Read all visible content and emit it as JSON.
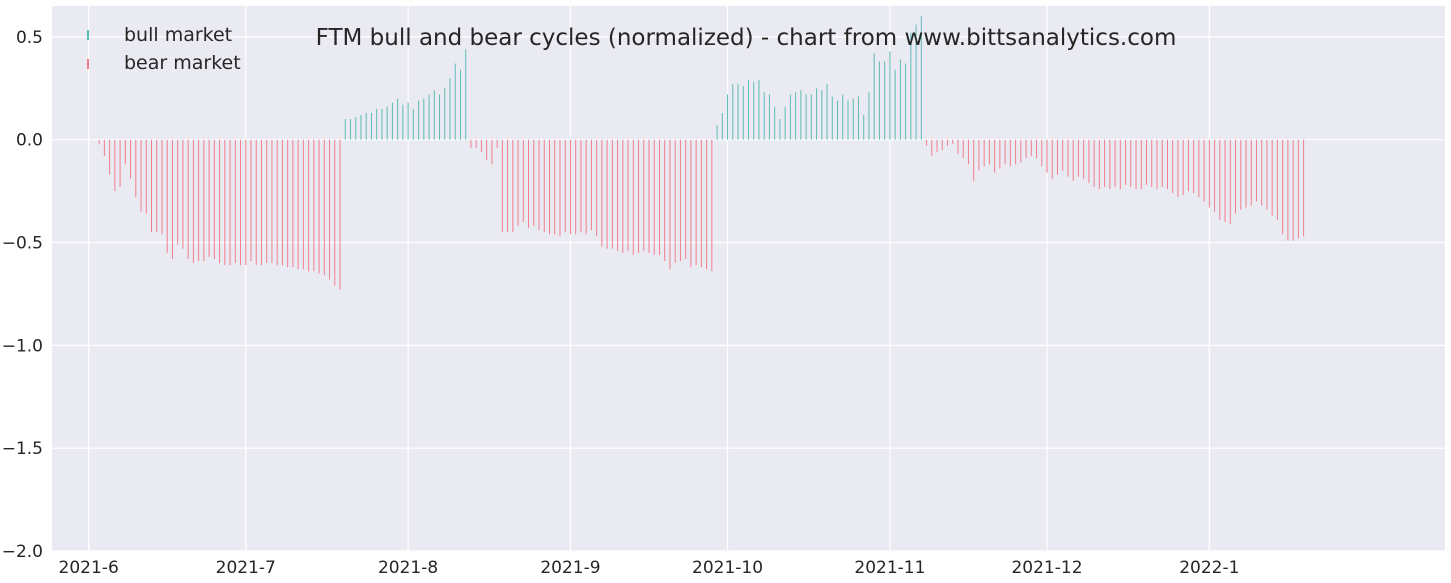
{
  "chart_data": {
    "type": "bar",
    "title": "FTM bull and bear cycles (normalized)  - chart from www.bittsanalytics.com",
    "xlabel": "",
    "ylabel": "",
    "ylim": [
      -2.0,
      0.65
    ],
    "xlim": [
      "2021-05-25",
      "2022-02-15"
    ],
    "grid": true,
    "legend_position": "top-left",
    "colors": {
      "background": "#eaeaf2",
      "grid": "#ffffff",
      "bull": "#5bbcb4",
      "bear": "#f07f8c",
      "text": "#262626"
    },
    "x_ticks": [
      {
        "label": "2021-6",
        "date": "2021-06-01"
      },
      {
        "label": "2021-7",
        "date": "2021-07-01"
      },
      {
        "label": "2021-8",
        "date": "2021-08-01"
      },
      {
        "label": "2021-9",
        "date": "2021-09-01"
      },
      {
        "label": "2021-10",
        "date": "2021-10-01"
      },
      {
        "label": "2021-11",
        "date": "2021-11-01"
      },
      {
        "label": "2021-12",
        "date": "2021-12-01"
      },
      {
        "label": "2022-1",
        "date": "2022-01-01"
      }
    ],
    "y_ticks": [
      {
        "label": "0.5",
        "value": 0.5
      },
      {
        "label": "0.0",
        "value": 0.0
      },
      {
        "label": "−0.5",
        "value": -0.5
      },
      {
        "label": "−1.0",
        "value": -1.0
      },
      {
        "label": "−1.5",
        "value": -1.5
      },
      {
        "label": "−2.0",
        "value": -2.0
      }
    ],
    "series": [
      {
        "name": "bull market",
        "color": "#5bbcb4",
        "points": [
          {
            "x": "2021-07-20",
            "y": 0.1
          },
          {
            "x": "2021-07-21",
            "y": 0.1
          },
          {
            "x": "2021-07-22",
            "y": 0.11
          },
          {
            "x": "2021-07-23",
            "y": 0.12
          },
          {
            "x": "2021-07-24",
            "y": 0.13
          },
          {
            "x": "2021-07-25",
            "y": 0.13
          },
          {
            "x": "2021-07-26",
            "y": 0.15
          },
          {
            "x": "2021-07-27",
            "y": 0.15
          },
          {
            "x": "2021-07-28",
            "y": 0.16
          },
          {
            "x": "2021-07-29",
            "y": 0.18
          },
          {
            "x": "2021-07-30",
            "y": 0.2
          },
          {
            "x": "2021-07-31",
            "y": 0.17
          },
          {
            "x": "2021-08-01",
            "y": 0.18
          },
          {
            "x": "2021-08-02",
            "y": 0.15
          },
          {
            "x": "2021-08-03",
            "y": 0.19
          },
          {
            "x": "2021-08-04",
            "y": 0.2
          },
          {
            "x": "2021-08-05",
            "y": 0.22
          },
          {
            "x": "2021-08-06",
            "y": 0.24
          },
          {
            "x": "2021-08-07",
            "y": 0.22
          },
          {
            "x": "2021-08-08",
            "y": 0.25
          },
          {
            "x": "2021-08-09",
            "y": 0.3
          },
          {
            "x": "2021-08-10",
            "y": 0.37
          },
          {
            "x": "2021-08-11",
            "y": 0.34
          },
          {
            "x": "2021-08-12",
            "y": 0.44
          },
          {
            "x": "2021-09-29",
            "y": 0.07
          },
          {
            "x": "2021-09-30",
            "y": 0.13
          },
          {
            "x": "2021-10-01",
            "y": 0.22
          },
          {
            "x": "2021-10-02",
            "y": 0.27
          },
          {
            "x": "2021-10-03",
            "y": 0.27
          },
          {
            "x": "2021-10-04",
            "y": 0.26
          },
          {
            "x": "2021-10-05",
            "y": 0.29
          },
          {
            "x": "2021-10-06",
            "y": 0.28
          },
          {
            "x": "2021-10-07",
            "y": 0.29
          },
          {
            "x": "2021-10-08",
            "y": 0.23
          },
          {
            "x": "2021-10-09",
            "y": 0.22
          },
          {
            "x": "2021-10-10",
            "y": 0.16
          },
          {
            "x": "2021-10-11",
            "y": 0.1
          },
          {
            "x": "2021-10-12",
            "y": 0.16
          },
          {
            "x": "2021-10-13",
            "y": 0.22
          },
          {
            "x": "2021-10-14",
            "y": 0.23
          },
          {
            "x": "2021-10-15",
            "y": 0.24
          },
          {
            "x": "2021-10-16",
            "y": 0.22
          },
          {
            "x": "2021-10-17",
            "y": 0.22
          },
          {
            "x": "2021-10-18",
            "y": 0.25
          },
          {
            "x": "2021-10-19",
            "y": 0.24
          },
          {
            "x": "2021-10-20",
            "y": 0.27
          },
          {
            "x": "2021-10-21",
            "y": 0.21
          },
          {
            "x": "2021-10-22",
            "y": 0.19
          },
          {
            "x": "2021-10-23",
            "y": 0.22
          },
          {
            "x": "2021-10-24",
            "y": 0.19
          },
          {
            "x": "2021-10-25",
            "y": 0.2
          },
          {
            "x": "2021-10-26",
            "y": 0.21
          },
          {
            "x": "2021-10-27",
            "y": 0.12
          },
          {
            "x": "2021-10-28",
            "y": 0.23
          },
          {
            "x": "2021-10-29",
            "y": 0.42
          },
          {
            "x": "2021-10-30",
            "y": 0.38
          },
          {
            "x": "2021-10-31",
            "y": 0.38
          },
          {
            "x": "2021-11-01",
            "y": 0.43
          },
          {
            "x": "2021-11-02",
            "y": 0.34
          },
          {
            "x": "2021-11-03",
            "y": 0.39
          },
          {
            "x": "2021-11-04",
            "y": 0.37
          },
          {
            "x": "2021-11-05",
            "y": 0.52
          },
          {
            "x": "2021-11-06",
            "y": 0.56
          },
          {
            "x": "2021-11-07",
            "y": 0.6
          }
        ]
      },
      {
        "name": "bear market",
        "color": "#f07f8c",
        "points": [
          {
            "x": "2021-06-03",
            "y": -0.02
          },
          {
            "x": "2021-06-04",
            "y": -0.08
          },
          {
            "x": "2021-06-05",
            "y": -0.17
          },
          {
            "x": "2021-06-06",
            "y": -0.25
          },
          {
            "x": "2021-06-07",
            "y": -0.23
          },
          {
            "x": "2021-06-08",
            "y": -0.12
          },
          {
            "x": "2021-06-09",
            "y": -0.19
          },
          {
            "x": "2021-06-10",
            "y": -0.28
          },
          {
            "x": "2021-06-11",
            "y": -0.35
          },
          {
            "x": "2021-06-12",
            "y": -0.36
          },
          {
            "x": "2021-06-13",
            "y": -0.45
          },
          {
            "x": "2021-06-14",
            "y": -0.45
          },
          {
            "x": "2021-06-15",
            "y": -0.46
          },
          {
            "x": "2021-06-16",
            "y": -0.55
          },
          {
            "x": "2021-06-17",
            "y": -0.58
          },
          {
            "x": "2021-06-18",
            "y": -0.51
          },
          {
            "x": "2021-06-19",
            "y": -0.53
          },
          {
            "x": "2021-06-20",
            "y": -0.58
          },
          {
            "x": "2021-06-21",
            "y": -0.6
          },
          {
            "x": "2021-06-22",
            "y": -0.59
          },
          {
            "x": "2021-06-23",
            "y": -0.59
          },
          {
            "x": "2021-06-24",
            "y": -0.57
          },
          {
            "x": "2021-06-25",
            "y": -0.58
          },
          {
            "x": "2021-06-26",
            "y": -0.6
          },
          {
            "x": "2021-06-27",
            "y": -0.61
          },
          {
            "x": "2021-06-28",
            "y": -0.61
          },
          {
            "x": "2021-06-29",
            "y": -0.6
          },
          {
            "x": "2021-06-30",
            "y": -0.61
          },
          {
            "x": "2021-07-01",
            "y": -0.61
          },
          {
            "x": "2021-07-02",
            "y": -0.59
          },
          {
            "x": "2021-07-03",
            "y": -0.61
          },
          {
            "x": "2021-07-04",
            "y": -0.61
          },
          {
            "x": "2021-07-05",
            "y": -0.6
          },
          {
            "x": "2021-07-06",
            "y": -0.6
          },
          {
            "x": "2021-07-07",
            "y": -0.61
          },
          {
            "x": "2021-07-08",
            "y": -0.61
          },
          {
            "x": "2021-07-09",
            "y": -0.62
          },
          {
            "x": "2021-07-10",
            "y": -0.62
          },
          {
            "x": "2021-07-11",
            "y": -0.63
          },
          {
            "x": "2021-07-12",
            "y": -0.63
          },
          {
            "x": "2021-07-13",
            "y": -0.64
          },
          {
            "x": "2021-07-14",
            "y": -0.64
          },
          {
            "x": "2021-07-15",
            "y": -0.65
          },
          {
            "x": "2021-07-16",
            "y": -0.66
          },
          {
            "x": "2021-07-17",
            "y": -0.68
          },
          {
            "x": "2021-07-18",
            "y": -0.71
          },
          {
            "x": "2021-07-19",
            "y": -0.73
          },
          {
            "x": "2021-08-13",
            "y": -0.04
          },
          {
            "x": "2021-08-14",
            "y": -0.04
          },
          {
            "x": "2021-08-15",
            "y": -0.06
          },
          {
            "x": "2021-08-16",
            "y": -0.1
          },
          {
            "x": "2021-08-17",
            "y": -0.12
          },
          {
            "x": "2021-08-18",
            "y": -0.04
          },
          {
            "x": "2021-08-19",
            "y": -0.45
          },
          {
            "x": "2021-08-20",
            "y": -0.45
          },
          {
            "x": "2021-08-21",
            "y": -0.45
          },
          {
            "x": "2021-08-22",
            "y": -0.42
          },
          {
            "x": "2021-08-23",
            "y": -0.4
          },
          {
            "x": "2021-08-24",
            "y": -0.43
          },
          {
            "x": "2021-08-25",
            "y": -0.42
          },
          {
            "x": "2021-08-26",
            "y": -0.44
          },
          {
            "x": "2021-08-27",
            "y": -0.45
          },
          {
            "x": "2021-08-28",
            "y": -0.46
          },
          {
            "x": "2021-08-29",
            "y": -0.46
          },
          {
            "x": "2021-08-30",
            "y": -0.47
          },
          {
            "x": "2021-08-31",
            "y": -0.45
          },
          {
            "x": "2021-09-01",
            "y": -0.46
          },
          {
            "x": "2021-09-02",
            "y": -0.46
          },
          {
            "x": "2021-09-03",
            "y": -0.45
          },
          {
            "x": "2021-09-04",
            "y": -0.46
          },
          {
            "x": "2021-09-05",
            "y": -0.44
          },
          {
            "x": "2021-09-06",
            "y": -0.47
          },
          {
            "x": "2021-09-07",
            "y": -0.52
          },
          {
            "x": "2021-09-08",
            "y": -0.53
          },
          {
            "x": "2021-09-09",
            "y": -0.53
          },
          {
            "x": "2021-09-10",
            "y": -0.54
          },
          {
            "x": "2021-09-11",
            "y": -0.55
          },
          {
            "x": "2021-09-12",
            "y": -0.54
          },
          {
            "x": "2021-09-13",
            "y": -0.56
          },
          {
            "x": "2021-09-14",
            "y": -0.55
          },
          {
            "x": "2021-09-15",
            "y": -0.54
          },
          {
            "x": "2021-09-16",
            "y": -0.55
          },
          {
            "x": "2021-09-17",
            "y": -0.56
          },
          {
            "x": "2021-09-18",
            "y": -0.56
          },
          {
            "x": "2021-09-19",
            "y": -0.59
          },
          {
            "x": "2021-09-20",
            "y": -0.63
          },
          {
            "x": "2021-09-21",
            "y": -0.6
          },
          {
            "x": "2021-09-22",
            "y": -0.59
          },
          {
            "x": "2021-09-23",
            "y": -0.58
          },
          {
            "x": "2021-09-24",
            "y": -0.62
          },
          {
            "x": "2021-09-25",
            "y": -0.61
          },
          {
            "x": "2021-09-26",
            "y": -0.62
          },
          {
            "x": "2021-09-27",
            "y": -0.63
          },
          {
            "x": "2021-09-28",
            "y": -0.64
          },
          {
            "x": "2021-11-08",
            "y": -0.03
          },
          {
            "x": "2021-11-09",
            "y": -0.08
          },
          {
            "x": "2021-11-10",
            "y": -0.06
          },
          {
            "x": "2021-11-11",
            "y": -0.05
          },
          {
            "x": "2021-11-12",
            "y": -0.03
          },
          {
            "x": "2021-11-13",
            "y": -0.02
          },
          {
            "x": "2021-11-14",
            "y": -0.07
          },
          {
            "x": "2021-11-15",
            "y": -0.09
          },
          {
            "x": "2021-11-16",
            "y": -0.12
          },
          {
            "x": "2021-11-17",
            "y": -0.2
          },
          {
            "x": "2021-11-18",
            "y": -0.15
          },
          {
            "x": "2021-11-19",
            "y": -0.13
          },
          {
            "x": "2021-11-20",
            "y": -0.12
          },
          {
            "x": "2021-11-21",
            "y": -0.16
          },
          {
            "x": "2021-11-22",
            "y": -0.14
          },
          {
            "x": "2021-11-23",
            "y": -0.12
          },
          {
            "x": "2021-11-24",
            "y": -0.13
          },
          {
            "x": "2021-11-25",
            "y": -0.12
          },
          {
            "x": "2021-11-26",
            "y": -0.11
          },
          {
            "x": "2021-11-27",
            "y": -0.09
          },
          {
            "x": "2021-11-28",
            "y": -0.08
          },
          {
            "x": "2021-11-29",
            "y": -0.09
          },
          {
            "x": "2021-11-30",
            "y": -0.13
          },
          {
            "x": "2021-12-01",
            "y": -0.16
          },
          {
            "x": "2021-12-02",
            "y": -0.19
          },
          {
            "x": "2021-12-03",
            "y": -0.17
          },
          {
            "x": "2021-12-04",
            "y": -0.15
          },
          {
            "x": "2021-12-05",
            "y": -0.18
          },
          {
            "x": "2021-12-06",
            "y": -0.2
          },
          {
            "x": "2021-12-07",
            "y": -0.18
          },
          {
            "x": "2021-12-08",
            "y": -0.19
          },
          {
            "x": "2021-12-09",
            "y": -0.21
          },
          {
            "x": "2021-12-10",
            "y": -0.23
          },
          {
            "x": "2021-12-11",
            "y": -0.24
          },
          {
            "x": "2021-12-12",
            "y": -0.23
          },
          {
            "x": "2021-12-13",
            "y": -0.24
          },
          {
            "x": "2021-12-14",
            "y": -0.23
          },
          {
            "x": "2021-12-15",
            "y": -0.24
          },
          {
            "x": "2021-12-16",
            "y": -0.22
          },
          {
            "x": "2021-12-17",
            "y": -0.23
          },
          {
            "x": "2021-12-18",
            "y": -0.24
          },
          {
            "x": "2021-12-19",
            "y": -0.24
          },
          {
            "x": "2021-12-20",
            "y": -0.22
          },
          {
            "x": "2021-12-21",
            "y": -0.23
          },
          {
            "x": "2021-12-22",
            "y": -0.24
          },
          {
            "x": "2021-12-23",
            "y": -0.23
          },
          {
            "x": "2021-12-24",
            "y": -0.24
          },
          {
            "x": "2021-12-25",
            "y": -0.26
          },
          {
            "x": "2021-12-26",
            "y": -0.28
          },
          {
            "x": "2021-12-27",
            "y": -0.27
          },
          {
            "x": "2021-12-28",
            "y": -0.25
          },
          {
            "x": "2021-12-29",
            "y": -0.26
          },
          {
            "x": "2021-12-30",
            "y": -0.28
          },
          {
            "x": "2021-12-31",
            "y": -0.3
          },
          {
            "x": "2022-01-01",
            "y": -0.33
          },
          {
            "x": "2022-01-02",
            "y": -0.35
          },
          {
            "x": "2022-01-03",
            "y": -0.39
          },
          {
            "x": "2022-01-04",
            "y": -0.4
          },
          {
            "x": "2022-01-05",
            "y": -0.41
          },
          {
            "x": "2022-01-06",
            "y": -0.36
          },
          {
            "x": "2022-01-07",
            "y": -0.34
          },
          {
            "x": "2022-01-08",
            "y": -0.33
          },
          {
            "x": "2022-01-09",
            "y": -0.32
          },
          {
            "x": "2022-01-10",
            "y": -0.3
          },
          {
            "x": "2022-01-11",
            "y": -0.32
          },
          {
            "x": "2022-01-12",
            "y": -0.34
          },
          {
            "x": "2022-01-13",
            "y": -0.37
          },
          {
            "x": "2022-01-14",
            "y": -0.39
          },
          {
            "x": "2022-01-15",
            "y": -0.46
          },
          {
            "x": "2022-01-16",
            "y": -0.49
          },
          {
            "x": "2022-01-17",
            "y": -0.49
          },
          {
            "x": "2022-01-18",
            "y": -0.48
          },
          {
            "x": "2022-01-19",
            "y": -0.47
          }
        ]
      }
    ]
  }
}
